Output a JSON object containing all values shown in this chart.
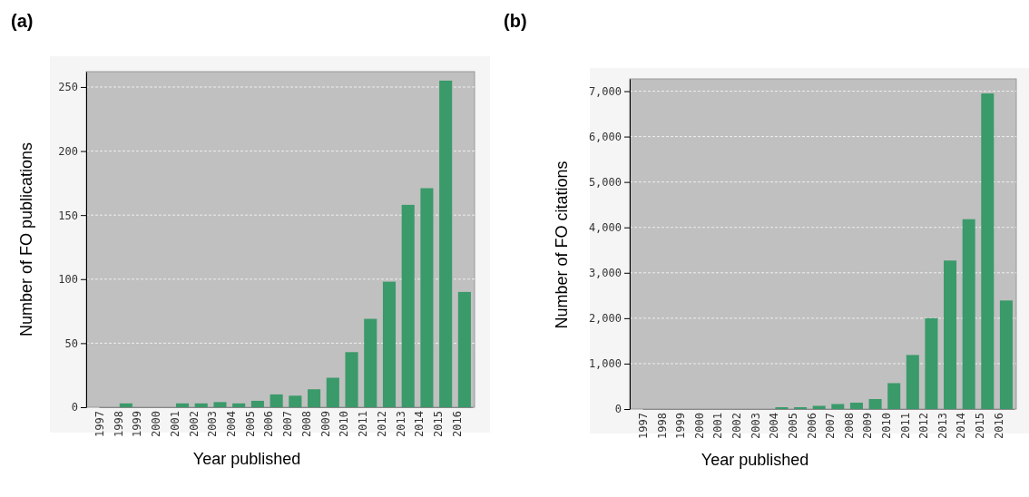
{
  "chart_data": [
    {
      "type": "bar",
      "title": "(a)",
      "xlabel": "Year published",
      "ylabel": "Number of FO publications",
      "categories": [
        "1997",
        "1998",
        "1999",
        "2000",
        "2001",
        "2002",
        "2003",
        "2004",
        "2005",
        "2006",
        "2007",
        "2008",
        "2009",
        "2010",
        "2011",
        "2012",
        "2013",
        "2014",
        "2015",
        "2016"
      ],
      "values": [
        0,
        3,
        0,
        0,
        3,
        3,
        4,
        3,
        5,
        10,
        9,
        14,
        23,
        43,
        69,
        98,
        158,
        171,
        255,
        90
      ],
      "color": "#3a9a6a",
      "ylim": [
        0,
        262
      ],
      "yticks": [
        0,
        50,
        100,
        150,
        200,
        250
      ],
      "grid": "y"
    },
    {
      "type": "bar",
      "title": "(b)",
      "xlabel": "Year published",
      "ylabel": "Number of FO citations",
      "categories": [
        "1997",
        "1998",
        "1999",
        "2000",
        "2001",
        "2002",
        "2003",
        "2004",
        "2005",
        "2006",
        "2007",
        "2008",
        "2009",
        "2010",
        "2011",
        "2012",
        "2013",
        "2014",
        "2015",
        "2016"
      ],
      "values": [
        0,
        0,
        0,
        0,
        0,
        0,
        0,
        40,
        40,
        70,
        110,
        140,
        220,
        570,
        1190,
        2000,
        3270,
        4180,
        6950,
        2390
      ],
      "color": "#3a9a6a",
      "ylim": [
        0,
        7270
      ],
      "yticks": [
        {
          "value": 0,
          "label": "0"
        },
        {
          "value": 1000,
          "label": "1,000"
        },
        {
          "value": 2000,
          "label": "2,000"
        },
        {
          "value": 3000,
          "label": "3,000"
        },
        {
          "value": 4000,
          "label": "4,000"
        },
        {
          "value": 5000,
          "label": "5,000"
        },
        {
          "value": 6000,
          "label": "6,000"
        },
        {
          "value": 7000,
          "label": "7,000"
        }
      ],
      "grid": "y"
    }
  ]
}
